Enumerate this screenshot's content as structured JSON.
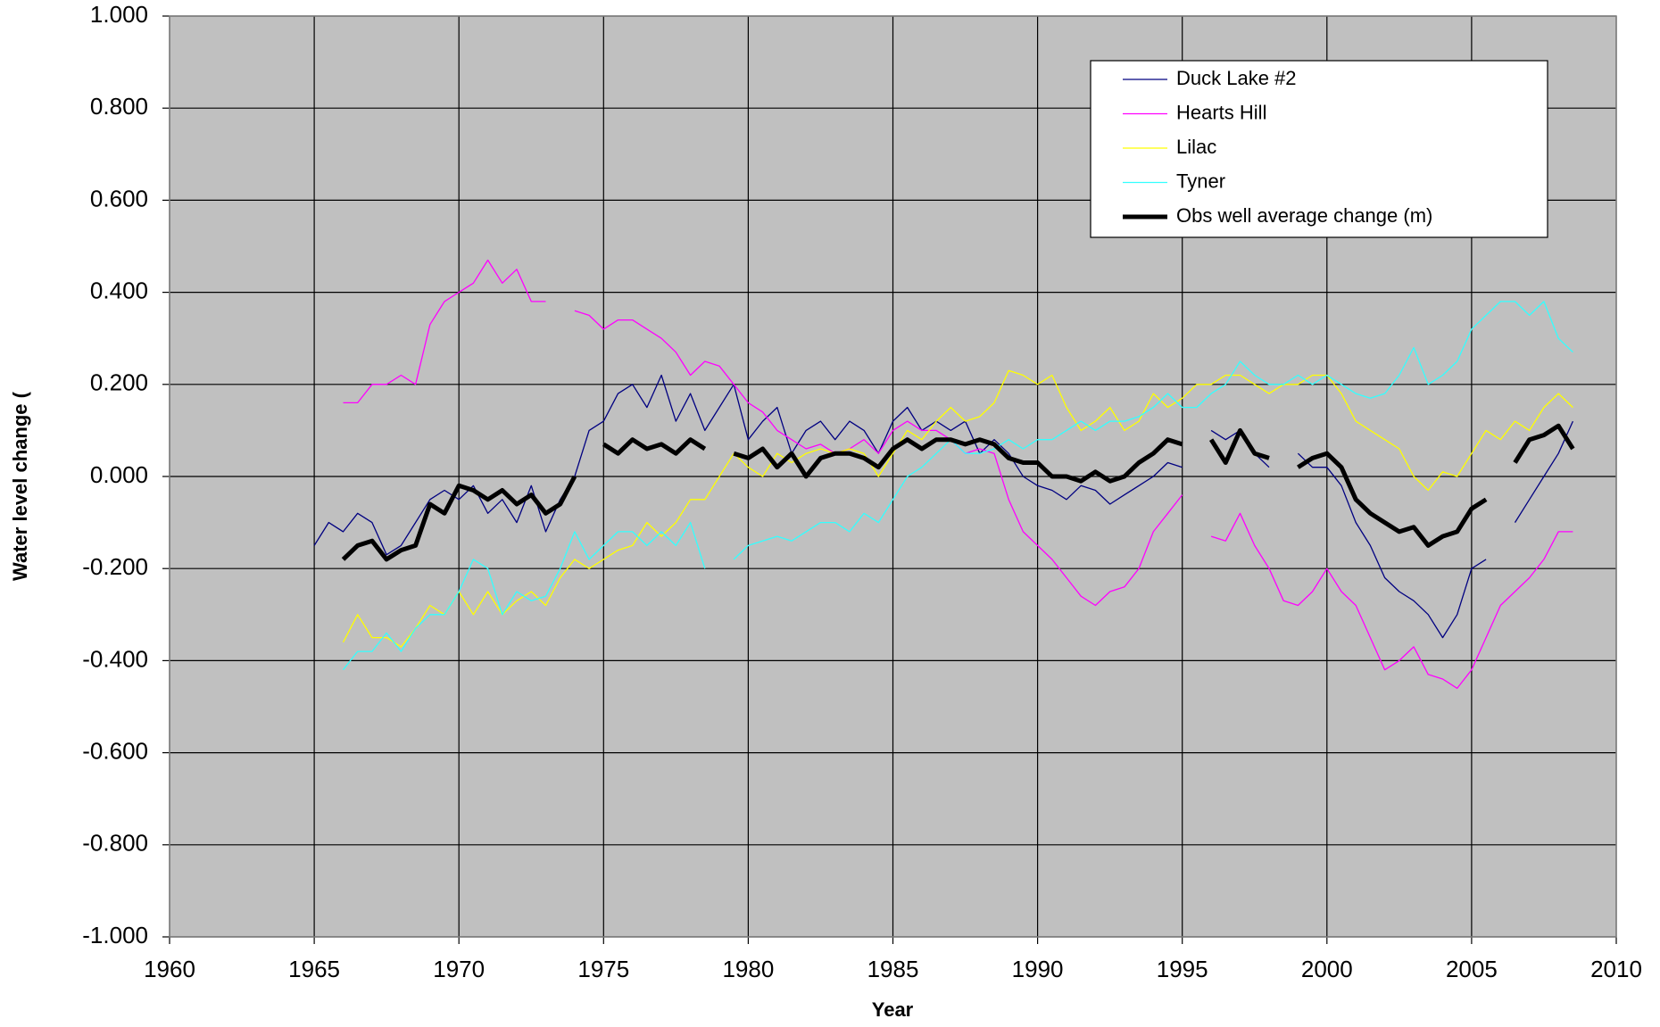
{
  "chart_data": {
    "type": "line",
    "xlabel": "Year",
    "ylabel": "Water level change (",
    "xlim": [
      1960,
      2010
    ],
    "ylim": [
      -1,
      1
    ],
    "xticks": [
      1960,
      1965,
      1970,
      1975,
      1980,
      1985,
      1990,
      1995,
      2000,
      2005,
      2010
    ],
    "yticks": [
      {
        "value": -1,
        "label": "-1.000"
      },
      {
        "value": -0.8,
        "label": "-0.800"
      },
      {
        "value": -0.6,
        "label": "-0.600"
      },
      {
        "value": -0.4,
        "label": "-0.400"
      },
      {
        "value": -0.2,
        "label": "-0.200"
      },
      {
        "value": 0,
        "label": "0.000"
      },
      {
        "value": 0.2,
        "label": "0.200"
      },
      {
        "value": 0.4,
        "label": "0.400"
      },
      {
        "value": 0.6,
        "label": "0.600"
      },
      {
        "value": 0.8,
        "label": "0.800"
      },
      {
        "value": 1,
        "label": "1.000"
      }
    ],
    "grid": true,
    "background": "#c0c0c0",
    "legend": "upper right",
    "x": [
      1965,
      1965.5,
      1966,
      1966.5,
      1967,
      1967.5,
      1968,
      1968.5,
      1969,
      1969.5,
      1970,
      1970.5,
      1971,
      1971.5,
      1972,
      1972.5,
      1973,
      1973.5,
      1974,
      1974.5,
      1975,
      1975.5,
      1976,
      1976.5,
      1977,
      1977.5,
      1978,
      1978.5,
      1979,
      1979.5,
      1980,
      1980.5,
      1981,
      1981.5,
      1982,
      1982.5,
      1983,
      1983.5,
      1984,
      1984.5,
      1985,
      1985.5,
      1986,
      1986.5,
      1987,
      1987.5,
      1988,
      1988.5,
      1989,
      1989.5,
      1990,
      1990.5,
      1991,
      1991.5,
      1992,
      1992.5,
      1993,
      1993.5,
      1994,
      1994.5,
      1995,
      1995.5,
      1996,
      1996.5,
      1997,
      1997.5,
      1998,
      1998.5,
      1999,
      1999.5,
      2000,
      2000.5,
      2001,
      2001.5,
      2002,
      2002.5,
      2003,
      2003.5,
      2004,
      2004.5,
      2005,
      2005.5,
      2006,
      2006.5,
      2007,
      2007.5,
      2008,
      2008.5
    ],
    "series": [
      {
        "name": "Duck Lake #2",
        "color": "#000080",
        "width": 1.3,
        "values": [
          -0.15,
          -0.1,
          -0.12,
          -0.08,
          -0.1,
          -0.17,
          -0.15,
          -0.1,
          -0.05,
          -0.03,
          -0.05,
          -0.02,
          -0.08,
          -0.05,
          -0.1,
          -0.02,
          -0.12,
          -0.05,
          0.0,
          0.1,
          0.12,
          0.18,
          0.2,
          0.15,
          0.22,
          0.12,
          0.18,
          0.1,
          0.15,
          0.2,
          0.08,
          0.12,
          0.15,
          0.05,
          0.1,
          0.12,
          0.08,
          0.12,
          0.1,
          0.05,
          0.12,
          0.15,
          0.1,
          0.12,
          0.1,
          0.12,
          0.05,
          0.08,
          0.05,
          0.0,
          -0.02,
          -0.03,
          -0.05,
          -0.02,
          -0.03,
          -0.06,
          -0.04,
          -0.02,
          0.0,
          0.03,
          0.02,
          null,
          0.1,
          0.08,
          0.1,
          0.05,
          0.02,
          null,
          0.05,
          0.02,
          0.02,
          -0.02,
          -0.1,
          -0.15,
          -0.22,
          -0.25,
          -0.27,
          -0.3,
          -0.35,
          -0.3,
          -0.2,
          -0.18,
          null,
          -0.1,
          -0.05,
          0.0,
          0.05,
          0.12
        ]
      },
      {
        "name": "Hearts Hill",
        "color": "#ff00ff",
        "width": 1.3,
        "values": [
          null,
          null,
          0.16,
          0.16,
          0.2,
          0.2,
          0.22,
          0.2,
          0.33,
          0.38,
          0.4,
          0.42,
          0.47,
          0.42,
          0.45,
          0.38,
          0.38,
          null,
          0.36,
          0.35,
          0.32,
          0.34,
          0.34,
          0.32,
          0.3,
          0.27,
          0.22,
          0.25,
          0.24,
          0.2,
          0.16,
          0.14,
          0.1,
          0.08,
          0.06,
          0.07,
          0.05,
          0.06,
          0.08,
          0.05,
          0.1,
          0.12,
          0.1,
          0.1,
          0.08,
          0.05,
          0.06,
          0.05,
          -0.05,
          -0.12,
          -0.15,
          -0.18,
          -0.22,
          -0.26,
          -0.28,
          -0.25,
          -0.24,
          -0.2,
          -0.12,
          -0.08,
          -0.04,
          null,
          -0.13,
          -0.14,
          -0.08,
          -0.15,
          -0.2,
          -0.27,
          -0.28,
          -0.25,
          -0.2,
          -0.25,
          -0.28,
          -0.35,
          -0.42,
          -0.4,
          -0.37,
          -0.43,
          -0.44,
          -0.46,
          -0.42,
          -0.35,
          -0.28,
          -0.25,
          -0.22,
          -0.18,
          -0.12,
          -0.12
        ]
      },
      {
        "name": "Lilac",
        "color": "#ffff00",
        "width": 1.3,
        "values": [
          null,
          null,
          -0.36,
          -0.3,
          -0.35,
          -0.35,
          -0.37,
          -0.33,
          -0.28,
          -0.3,
          -0.25,
          -0.3,
          -0.25,
          -0.3,
          -0.27,
          -0.25,
          -0.28,
          -0.22,
          -0.18,
          -0.2,
          -0.18,
          -0.16,
          -0.15,
          -0.1,
          -0.13,
          -0.1,
          -0.05,
          -0.05,
          0.0,
          0.05,
          0.02,
          0.0,
          0.05,
          0.03,
          0.05,
          0.06,
          0.05,
          0.06,
          0.05,
          0.0,
          0.05,
          0.1,
          0.08,
          0.12,
          0.15,
          0.12,
          0.13,
          0.16,
          0.23,
          0.22,
          0.2,
          0.22,
          0.15,
          0.1,
          0.12,
          0.15,
          0.1,
          0.12,
          0.18,
          0.15,
          0.17,
          0.2,
          0.2,
          0.22,
          0.22,
          0.2,
          0.18,
          0.2,
          0.2,
          0.22,
          0.22,
          0.18,
          0.12,
          0.1,
          0.08,
          0.06,
          0.0,
          -0.03,
          0.01,
          0.0,
          0.05,
          0.1,
          0.08,
          0.12,
          0.1,
          0.15,
          0.18,
          0.15
        ]
      },
      {
        "name": "Tyner",
        "color": "#33ffff",
        "width": 1.3,
        "values": [
          null,
          null,
          -0.42,
          -0.38,
          -0.38,
          -0.34,
          -0.38,
          -0.33,
          -0.3,
          -0.3,
          -0.25,
          -0.18,
          -0.2,
          -0.3,
          -0.25,
          -0.27,
          -0.26,
          -0.2,
          -0.12,
          -0.18,
          -0.15,
          -0.12,
          -0.12,
          -0.15,
          -0.12,
          -0.15,
          -0.1,
          -0.2,
          null,
          -0.18,
          -0.15,
          -0.14,
          -0.13,
          -0.14,
          -0.12,
          -0.1,
          -0.1,
          -0.12,
          -0.08,
          -0.1,
          -0.05,
          0.0,
          0.02,
          0.05,
          0.08,
          0.05,
          0.05,
          0.06,
          0.08,
          0.06,
          0.08,
          0.08,
          0.1,
          0.12,
          0.1,
          0.12,
          0.12,
          0.13,
          0.15,
          0.18,
          0.15,
          0.15,
          0.18,
          0.2,
          0.25,
          0.22,
          0.2,
          0.2,
          0.22,
          0.2,
          0.22,
          0.2,
          0.18,
          0.17,
          0.18,
          0.22,
          0.28,
          0.2,
          0.22,
          0.25,
          0.32,
          0.35,
          0.38,
          0.38,
          0.35,
          0.38,
          0.3,
          0.27
        ]
      },
      {
        "name": "Obs well average change (m)",
        "color": "#000000",
        "width": 5,
        "values": [
          null,
          null,
          -0.18,
          -0.15,
          -0.14,
          -0.18,
          -0.16,
          -0.15,
          -0.06,
          -0.08,
          -0.02,
          -0.03,
          -0.05,
          -0.03,
          -0.06,
          -0.04,
          -0.08,
          -0.06,
          0.0,
          null,
          0.07,
          0.05,
          0.08,
          0.06,
          0.07,
          0.05,
          0.08,
          0.06,
          null,
          0.05,
          0.04,
          0.06,
          0.02,
          0.05,
          0.0,
          0.04,
          0.05,
          0.05,
          0.04,
          0.02,
          0.06,
          0.08,
          0.06,
          0.08,
          0.08,
          0.07,
          0.08,
          0.07,
          0.04,
          0.03,
          0.03,
          0.0,
          0.0,
          -0.01,
          0.01,
          -0.01,
          0.0,
          0.03,
          0.05,
          0.08,
          0.07,
          null,
          0.08,
          0.03,
          0.1,
          0.05,
          0.04,
          null,
          0.02,
          0.04,
          0.05,
          0.02,
          -0.05,
          -0.08,
          -0.1,
          -0.12,
          -0.11,
          -0.15,
          -0.13,
          -0.12,
          -0.07,
          -0.05,
          null,
          0.03,
          0.08,
          0.09,
          0.11,
          0.06
        ]
      }
    ]
  }
}
